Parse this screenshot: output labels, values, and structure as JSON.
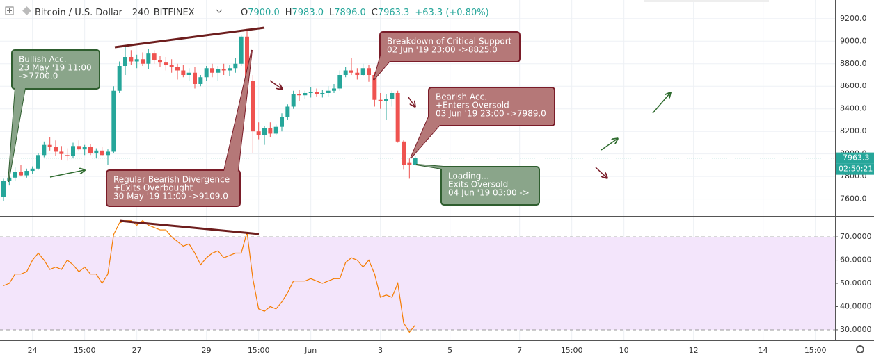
{
  "header": {
    "symbol": "Bitcoin / U.S. Dollar",
    "interval": "240",
    "exchange": "BITFINEX",
    "ohlc": [
      {
        "label": "O",
        "value": "7900.0"
      },
      {
        "label": "H",
        "value": "7983.0"
      },
      {
        "label": "L",
        "value": "7896.0"
      },
      {
        "label": "C",
        "value": "7963.3"
      }
    ],
    "change": "+63.3 (+0.80%)"
  },
  "chart_data": [
    {
      "type": "candlestick",
      "up_color": "#26a69a",
      "down_color": "#ef5350",
      "grid": true,
      "open": [
        7620,
        7760,
        7790,
        7840,
        7810,
        7850,
        7870,
        7990,
        8080,
        8060,
        8020,
        7990,
        7980,
        8070,
        8040,
        8060,
        8010,
        8030,
        7990,
        8020,
        8560,
        8780,
        8860,
        8820,
        8840,
        8800,
        8890,
        8830,
        8810,
        8790,
        8770,
        8740,
        8700,
        8720,
        8620,
        8680,
        8760,
        8720,
        8750,
        8740,
        8760,
        8800,
        9040,
        8650,
        8200,
        8170,
        8230,
        8180,
        8240,
        8330,
        8420,
        8530,
        8520,
        8540,
        8550,
        8530,
        8540,
        8560,
        8580,
        8700,
        8740,
        8720,
        8700,
        8760,
        8700,
        8480,
        8470,
        8490,
        8540,
        8110,
        7920,
        7900
      ],
      "high": [
        7780,
        7810,
        7880,
        7900,
        7870,
        7890,
        8010,
        8110,
        8150,
        8120,
        8070,
        8050,
        8100,
        8120,
        8080,
        8090,
        8050,
        8060,
        8040,
        8600,
        8820,
        8950,
        8920,
        8880,
        8900,
        8930,
        8920,
        8870,
        8860,
        8840,
        8800,
        8790,
        8760,
        8770,
        8700,
        8780,
        8800,
        8780,
        8800,
        8790,
        8850,
        9050,
        9109,
        8700,
        8280,
        8250,
        8280,
        8260,
        8360,
        8440,
        8560,
        8570,
        8560,
        8590,
        8580,
        8570,
        8600,
        8620,
        8740,
        8770,
        8850,
        8760,
        8800,
        8790,
        8730,
        8540,
        8530,
        8560,
        8560,
        8120,
        7960,
        7983
      ],
      "low": [
        7580,
        7720,
        7760,
        7800,
        7790,
        7820,
        7860,
        7970,
        8030,
        7980,
        7950,
        7940,
        7960,
        8030,
        7990,
        7990,
        7960,
        7980,
        7900,
        8010,
        8540,
        8700,
        8790,
        8760,
        8780,
        8750,
        8800,
        8770,
        8740,
        8720,
        8660,
        8680,
        8650,
        8580,
        8600,
        8650,
        8680,
        8650,
        8700,
        8690,
        8720,
        8780,
        8650,
        8010,
        8130,
        8080,
        8150,
        8170,
        8200,
        8300,
        8400,
        8470,
        8490,
        8500,
        8510,
        8500,
        8510,
        8540,
        8560,
        8680,
        8700,
        8660,
        8690,
        8640,
        8420,
        8400,
        8300,
        8420,
        8100,
        7860,
        7780,
        7896
      ],
      "close": [
        7760,
        7790,
        7840,
        7810,
        7850,
        7870,
        7990,
        8080,
        8060,
        8020,
        8000,
        7980,
        8070,
        8040,
        8060,
        8010,
        8030,
        7990,
        8020,
        8560,
        8780,
        8860,
        8820,
        8840,
        8800,
        8890,
        8830,
        8810,
        8790,
        8770,
        8740,
        8700,
        8720,
        8620,
        8680,
        8760,
        8720,
        8750,
        8740,
        8760,
        8800,
        9040,
        8650,
        8200,
        8170,
        8230,
        8180,
        8240,
        8330,
        8420,
        8530,
        8520,
        8540,
        8550,
        8530,
        8540,
        8560,
        8580,
        8700,
        8740,
        8720,
        8700,
        8760,
        8700,
        8480,
        8470,
        8490,
        8540,
        8110,
        7900,
        7900,
        7963.3
      ],
      "xlim": [
        -0.6,
        143.4
      ],
      "xticks": [
        {
          "value": 5,
          "label": "24"
        },
        {
          "value": 14,
          "label": "15:00"
        },
        {
          "value": 23,
          "label": "27"
        },
        {
          "value": 35,
          "label": "29"
        },
        {
          "value": 44,
          "label": "15:00"
        },
        {
          "value": 53,
          "label": "Jun"
        },
        {
          "value": 65,
          "label": "3"
        },
        {
          "value": 77,
          "label": "5"
        },
        {
          "value": 89,
          "label": "7"
        },
        {
          "value": 98,
          "label": "15:00"
        },
        {
          "value": 107,
          "label": "10"
        },
        {
          "value": 119,
          "label": "12"
        },
        {
          "value": 131,
          "label": "14"
        },
        {
          "value": 140,
          "label": "15:00"
        }
      ],
      "ylim": [
        7450,
        9365
      ],
      "yticks": [
        {
          "value": 7600,
          "label": "7600.0"
        },
        {
          "value": 7800,
          "label": "7800.0"
        },
        {
          "value": 8000,
          "label": "8000.0"
        },
        {
          "value": 8200,
          "label": "8200.0"
        },
        {
          "value": 8400,
          "label": "8400.0"
        },
        {
          "value": 8600,
          "label": "8600.0"
        },
        {
          "value": 8800,
          "label": "8800.0"
        },
        {
          "value": 9000,
          "label": "9000.0"
        },
        {
          "value": 9200,
          "label": "9200.0"
        }
      ],
      "last_price": 7963.3,
      "countdown": "02:50:21",
      "annotations": [
        {
          "color": "green",
          "lines": [
            "Bullish Acc.",
            "23 May '19 11:00",
            "->7700.0"
          ]
        },
        {
          "color": "red",
          "lines": [
            "Regular Bearish Divergence",
            "+Exits Overbought",
            "30 May '19 11:00 ->9109.0"
          ]
        },
        {
          "color": "red",
          "lines": [
            "Breakdown of Critical Support",
            "02 Jun '19 23:00 ->8825.0"
          ]
        },
        {
          "color": "red",
          "lines": [
            "Bearish Acc.",
            "+Enters Oversold",
            "03 Jun '19 23:00 ->7989.0"
          ]
        },
        {
          "color": "green",
          "lines": [
            "Loading...",
            "Exits Oversold",
            "04 Jun '19 03:00 ->"
          ]
        }
      ]
    },
    {
      "type": "line",
      "color": "#f57c00",
      "band": [
        30,
        70
      ],
      "band_color": "#f3e5fb",
      "values": [
        49,
        50,
        54,
        54,
        55,
        60,
        63,
        60,
        56,
        57,
        56,
        60,
        58,
        55,
        57,
        54,
        54,
        50,
        54,
        71,
        76,
        77,
        77,
        75,
        77,
        75,
        74,
        73,
        73,
        70,
        68,
        66,
        67,
        63,
        58,
        61,
        63,
        64,
        61,
        62,
        63,
        63,
        72,
        52,
        39,
        38,
        40,
        39,
        42,
        46,
        51,
        51,
        51,
        52,
        51,
        50,
        51,
        52,
        52,
        59,
        61,
        60,
        57,
        60,
        54,
        44,
        45,
        44,
        50,
        33,
        29,
        32
      ],
      "xlim": [
        -0.6,
        143.4
      ],
      "ylim": [
        25.5,
        78.7
      ],
      "yticks": [
        {
          "value": 30,
          "label": "30.0000"
        },
        {
          "value": 40,
          "label": "40.0000"
        },
        {
          "value": 50,
          "label": "50.0000"
        },
        {
          "value": 60,
          "label": "60.0000"
        },
        {
          "value": 70,
          "label": "70.0000"
        }
      ]
    }
  ]
}
